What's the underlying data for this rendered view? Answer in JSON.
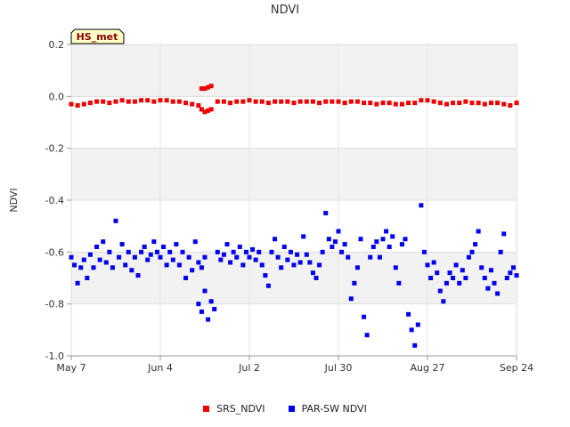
{
  "chart_data": {
    "type": "scatter",
    "title": "NDVI",
    "ylabel": "NDVI",
    "xlabel": "",
    "station_label": "HS_met",
    "ylim": [
      -1.0,
      0.2
    ],
    "yticks": [
      0.2,
      0.0,
      -0.2,
      -0.4,
      -0.6,
      -0.8,
      -1.0
    ],
    "ytick_labels": [
      "0.2",
      "0.0",
      "-0.2",
      "-0.4",
      "-0.6",
      "-0.8",
      "-1.0"
    ],
    "xlim_days": [
      0,
      140
    ],
    "xticks_days": [
      0,
      28,
      56,
      84,
      112,
      140
    ],
    "xtick_labels": [
      "May 7",
      "Jun 4",
      "Jul 2",
      "Jul 30",
      "Aug 27",
      "Sep 24"
    ],
    "shaded_bands": [
      [
        -0.8,
        -0.6
      ],
      [
        -0.4,
        -0.2
      ],
      [
        0.0,
        0.2
      ]
    ],
    "legend_position": "bottom-center",
    "series": [
      {
        "name": "SRS_NDVI",
        "color": "#ee0000",
        "points": [
          [
            0,
            -0.03
          ],
          [
            2,
            -0.035
          ],
          [
            4,
            -0.03
          ],
          [
            6,
            -0.025
          ],
          [
            8,
            -0.02
          ],
          [
            10,
            -0.02
          ],
          [
            12,
            -0.025
          ],
          [
            14,
            -0.02
          ],
          [
            16,
            -0.015
          ],
          [
            18,
            -0.02
          ],
          [
            20,
            -0.02
          ],
          [
            22,
            -0.015
          ],
          [
            24,
            -0.015
          ],
          [
            26,
            -0.02
          ],
          [
            28,
            -0.015
          ],
          [
            30,
            -0.015
          ],
          [
            32,
            -0.02
          ],
          [
            34,
            -0.02
          ],
          [
            36,
            -0.025
          ],
          [
            38,
            -0.03
          ],
          [
            40,
            -0.035
          ],
          [
            41,
            -0.05
          ],
          [
            42,
            -0.06
          ],
          [
            43,
            -0.055
          ],
          [
            44,
            -0.05
          ],
          [
            41,
            0.03
          ],
          [
            42,
            0.03
          ],
          [
            43,
            0.035
          ],
          [
            44,
            0.04
          ],
          [
            46,
            -0.02
          ],
          [
            48,
            -0.02
          ],
          [
            50,
            -0.025
          ],
          [
            52,
            -0.02
          ],
          [
            54,
            -0.02
          ],
          [
            56,
            -0.015
          ],
          [
            58,
            -0.02
          ],
          [
            60,
            -0.02
          ],
          [
            62,
            -0.025
          ],
          [
            64,
            -0.02
          ],
          [
            66,
            -0.02
          ],
          [
            68,
            -0.02
          ],
          [
            70,
            -0.025
          ],
          [
            72,
            -0.02
          ],
          [
            74,
            -0.02
          ],
          [
            76,
            -0.02
          ],
          [
            78,
            -0.025
          ],
          [
            80,
            -0.02
          ],
          [
            82,
            -0.02
          ],
          [
            84,
            -0.02
          ],
          [
            86,
            -0.025
          ],
          [
            88,
            -0.02
          ],
          [
            90,
            -0.02
          ],
          [
            92,
            -0.025
          ],
          [
            94,
            -0.025
          ],
          [
            96,
            -0.03
          ],
          [
            98,
            -0.025
          ],
          [
            100,
            -0.025
          ],
          [
            102,
            -0.03
          ],
          [
            104,
            -0.03
          ],
          [
            106,
            -0.025
          ],
          [
            108,
            -0.025
          ],
          [
            110,
            -0.015
          ],
          [
            112,
            -0.015
          ],
          [
            114,
            -0.02
          ],
          [
            116,
            -0.025
          ],
          [
            118,
            -0.03
          ],
          [
            120,
            -0.025
          ],
          [
            122,
            -0.025
          ],
          [
            124,
            -0.02
          ],
          [
            126,
            -0.025
          ],
          [
            128,
            -0.025
          ],
          [
            130,
            -0.03
          ],
          [
            132,
            -0.025
          ],
          [
            134,
            -0.025
          ],
          [
            136,
            -0.03
          ],
          [
            138,
            -0.035
          ],
          [
            140,
            -0.025
          ]
        ]
      },
      {
        "name": "PAR-SW NDVI",
        "color": "#0000ee",
        "points": [
          [
            0,
            -0.62
          ],
          [
            1,
            -0.65
          ],
          [
            2,
            -0.72
          ],
          [
            3,
            -0.66
          ],
          [
            4,
            -0.63
          ],
          [
            5,
            -0.7
          ],
          [
            6,
            -0.61
          ],
          [
            7,
            -0.66
          ],
          [
            8,
            -0.58
          ],
          [
            9,
            -0.63
          ],
          [
            10,
            -0.56
          ],
          [
            11,
            -0.64
          ],
          [
            12,
            -0.6
          ],
          [
            13,
            -0.66
          ],
          [
            14,
            -0.48
          ],
          [
            15,
            -0.62
          ],
          [
            16,
            -0.57
          ],
          [
            17,
            -0.65
          ],
          [
            18,
            -0.6
          ],
          [
            19,
            -0.67
          ],
          [
            20,
            -0.62
          ],
          [
            21,
            -0.69
          ],
          [
            22,
            -0.6
          ],
          [
            23,
            -0.58
          ],
          [
            24,
            -0.63
          ],
          [
            25,
            -0.61
          ],
          [
            26,
            -0.56
          ],
          [
            27,
            -0.6
          ],
          [
            28,
            -0.62
          ],
          [
            29,
            -0.58
          ],
          [
            30,
            -0.65
          ],
          [
            31,
            -0.6
          ],
          [
            32,
            -0.63
          ],
          [
            33,
            -0.57
          ],
          [
            34,
            -0.65
          ],
          [
            35,
            -0.6
          ],
          [
            36,
            -0.7
          ],
          [
            37,
            -0.62
          ],
          [
            38,
            -0.67
          ],
          [
            39,
            -0.56
          ],
          [
            40,
            -0.64
          ],
          [
            41,
            -0.66
          ],
          [
            42,
            -0.62
          ],
          [
            40,
            -0.8
          ],
          [
            41,
            -0.83
          ],
          [
            42,
            -0.75
          ],
          [
            43,
            -0.86
          ],
          [
            44,
            -0.79
          ],
          [
            45,
            -0.82
          ],
          [
            46,
            -0.6
          ],
          [
            47,
            -0.63
          ],
          [
            48,
            -0.61
          ],
          [
            49,
            -0.57
          ],
          [
            50,
            -0.64
          ],
          [
            51,
            -0.6
          ],
          [
            52,
            -0.62
          ],
          [
            53,
            -0.58
          ],
          [
            54,
            -0.65
          ],
          [
            55,
            -0.6
          ],
          [
            56,
            -0.62
          ],
          [
            57,
            -0.59
          ],
          [
            58,
            -0.63
          ],
          [
            59,
            -0.6
          ],
          [
            60,
            -0.65
          ],
          [
            61,
            -0.69
          ],
          [
            62,
            -0.73
          ],
          [
            63,
            -0.6
          ],
          [
            64,
            -0.55
          ],
          [
            65,
            -0.62
          ],
          [
            66,
            -0.66
          ],
          [
            67,
            -0.58
          ],
          [
            68,
            -0.63
          ],
          [
            69,
            -0.6
          ],
          [
            70,
            -0.65
          ],
          [
            71,
            -0.61
          ],
          [
            72,
            -0.64
          ],
          [
            73,
            -0.54
          ],
          [
            74,
            -0.61
          ],
          [
            75,
            -0.64
          ],
          [
            76,
            -0.68
          ],
          [
            77,
            -0.7
          ],
          [
            78,
            -0.65
          ],
          [
            79,
            -0.6
          ],
          [
            80,
            -0.45
          ],
          [
            81,
            -0.55
          ],
          [
            82,
            -0.58
          ],
          [
            83,
            -0.56
          ],
          [
            84,
            -0.52
          ],
          [
            85,
            -0.6
          ],
          [
            86,
            -0.57
          ],
          [
            87,
            -0.62
          ],
          [
            88,
            -0.78
          ],
          [
            89,
            -0.72
          ],
          [
            90,
            -0.66
          ],
          [
            91,
            -0.55
          ],
          [
            92,
            -0.85
          ],
          [
            93,
            -0.92
          ],
          [
            94,
            -0.62
          ],
          [
            95,
            -0.58
          ],
          [
            96,
            -0.56
          ],
          [
            97,
            -0.62
          ],
          [
            98,
            -0.55
          ],
          [
            99,
            -0.52
          ],
          [
            100,
            -0.58
          ],
          [
            101,
            -0.54
          ],
          [
            102,
            -0.66
          ],
          [
            103,
            -0.72
          ],
          [
            104,
            -0.57
          ],
          [
            105,
            -0.55
          ],
          [
            106,
            -0.84
          ],
          [
            107,
            -0.9
          ],
          [
            108,
            -0.96
          ],
          [
            109,
            -0.88
          ],
          [
            110,
            -0.42
          ],
          [
            111,
            -0.6
          ],
          [
            112,
            -0.65
          ],
          [
            113,
            -0.7
          ],
          [
            114,
            -0.64
          ],
          [
            115,
            -0.68
          ],
          [
            116,
            -0.75
          ],
          [
            117,
            -0.79
          ],
          [
            118,
            -0.72
          ],
          [
            119,
            -0.68
          ],
          [
            120,
            -0.7
          ],
          [
            121,
            -0.65
          ],
          [
            122,
            -0.72
          ],
          [
            123,
            -0.67
          ],
          [
            124,
            -0.7
          ],
          [
            125,
            -0.62
          ],
          [
            126,
            -0.6
          ],
          [
            127,
            -0.57
          ],
          [
            128,
            -0.52
          ],
          [
            129,
            -0.66
          ],
          [
            130,
            -0.7
          ],
          [
            131,
            -0.74
          ],
          [
            132,
            -0.67
          ],
          [
            133,
            -0.72
          ],
          [
            134,
            -0.76
          ],
          [
            135,
            -0.6
          ],
          [
            136,
            -0.53
          ],
          [
            137,
            -0.7
          ],
          [
            138,
            -0.68
          ],
          [
            139,
            -0.66
          ],
          [
            140,
            -0.69
          ]
        ]
      }
    ]
  }
}
